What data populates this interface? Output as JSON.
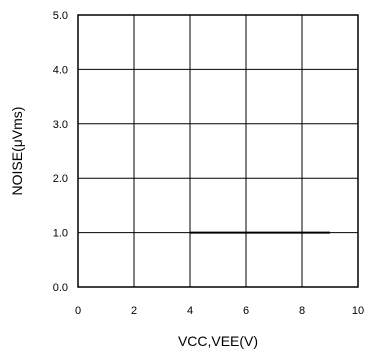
{
  "chart_data": {
    "type": "line",
    "xlabel": "VCC,VEE(V)",
    "ylabel": "NOISE(μVms)",
    "xlim": [
      0,
      10
    ],
    "ylim": [
      0.0,
      5.0
    ],
    "xticks": [
      "0",
      "2",
      "4",
      "6",
      "8",
      "10"
    ],
    "yticks": [
      "0.0",
      "1.0",
      "2.0",
      "3.0",
      "4.0",
      "5.0"
    ],
    "grid": true,
    "series": [
      {
        "x": [
          4,
          9
        ],
        "y": [
          1.0,
          1.0
        ]
      }
    ]
  }
}
